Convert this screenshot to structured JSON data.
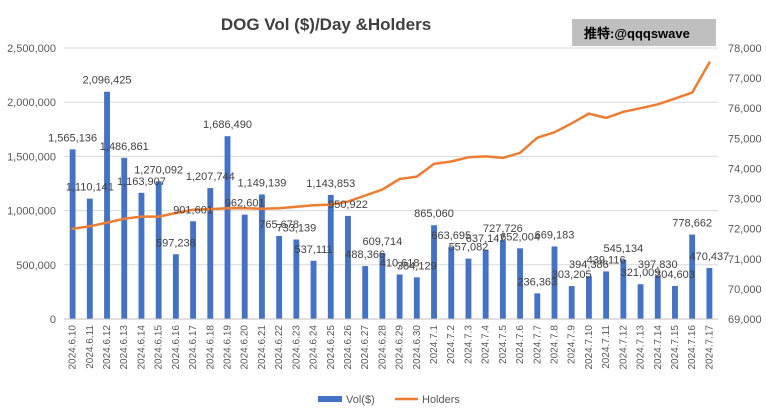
{
  "watermark": "推特:@qqqswave",
  "colors": {
    "bar": "#4472C4",
    "line": "#ED7D31",
    "grid": "#D9D9D9",
    "watermark_bg": "#BFBFBF"
  },
  "chart_data": {
    "type": "bar",
    "title": "DOG Vol ($)/Day &Holders",
    "categories": [
      "2024.6.10",
      "2024.6.11",
      "2024.6.12",
      "2024.6.13",
      "2024.6.14",
      "2024.6.15",
      "2024.6.16",
      "2024.6.17",
      "2024.6.18",
      "2024.6.19",
      "2024.6.20",
      "2024.6.21",
      "2024.6.22",
      "2024.6.23",
      "2024.6.24",
      "2024.6.25",
      "2024.6.26",
      "2024.6.27",
      "2024.6.28",
      "2024.6.29",
      "2024.6.30",
      "2024.7.1",
      "2024.7.2",
      "2024.7.3",
      "2024.7.4",
      "2024.7.5",
      "2024.7.6",
      "2024.7.7",
      "2024.7.8",
      "2024.7.9",
      "2024.7.10",
      "2024.7.11",
      "2024.7.12",
      "2024.7.13",
      "2024.7.14",
      "2024.7.15",
      "2024.7.16",
      "2024.7.17"
    ],
    "series": [
      {
        "name": "Vol($)",
        "type": "bar",
        "axis": "left",
        "values": [
          1565136,
          1110141,
          2096425,
          1486861,
          1163907,
          1270092,
          597238,
          901601,
          1207744,
          1686490,
          962601,
          1149139,
          765678,
          733139,
          537111,
          1143853,
          950922,
          488366,
          609714,
          410618,
          384129,
          865060,
          663695,
          557082,
          637147,
          727726,
          652004,
          236363,
          669183,
          303205,
          394386,
          439116,
          545134,
          321009,
          397830,
          304603,
          778662,
          470437
        ],
        "labels": [
          "1,565,136",
          "1,110,141",
          "2,096,425",
          "1,486,861",
          "1,163,907",
          "1,270,092",
          "597,238",
          "901,601",
          "1,207,744",
          "1,686,490",
          "962,601",
          "1,149,139",
          "765,678",
          "733,139",
          "537,111",
          "1,143,853",
          "950,922",
          "488,366",
          "609,714",
          "410,618",
          "384,129",
          "865,060",
          "663,695",
          "557,082",
          "637,147",
          "727,726",
          "652,004",
          "236,363",
          "669,183",
          "303,205",
          "394,386",
          "439,116",
          "545,134",
          "321,009",
          "397,830",
          "304,603",
          "778,662",
          "470,437"
        ]
      },
      {
        "name": "Holders",
        "type": "line",
        "axis": "right",
        "values": [
          72000,
          72080,
          72200,
          72330,
          72400,
          72400,
          72520,
          72630,
          72650,
          72680,
          72680,
          72660,
          72680,
          72730,
          72780,
          72800,
          72900,
          73100,
          73300,
          73650,
          73730,
          74150,
          74230,
          74370,
          74400,
          74350,
          74520,
          75020,
          75200,
          75500,
          75820,
          75680,
          75880,
          76000,
          76130,
          76320,
          76520,
          77520
        ]
      }
    ],
    "y_left": {
      "min": 0,
      "max": 2500000,
      "ticks": [
        "0",
        "500,000",
        "1,000,000",
        "1,500,000",
        "2,000,000",
        "2,500,000"
      ]
    },
    "y_right": {
      "min": 69000,
      "max": 78000,
      "ticks": [
        "69,000",
        "70,000",
        "71,000",
        "72,000",
        "73,000",
        "74,000",
        "75,000",
        "76,000",
        "77,000",
        "78,000"
      ]
    },
    "grid": true,
    "legend": "bottom"
  }
}
